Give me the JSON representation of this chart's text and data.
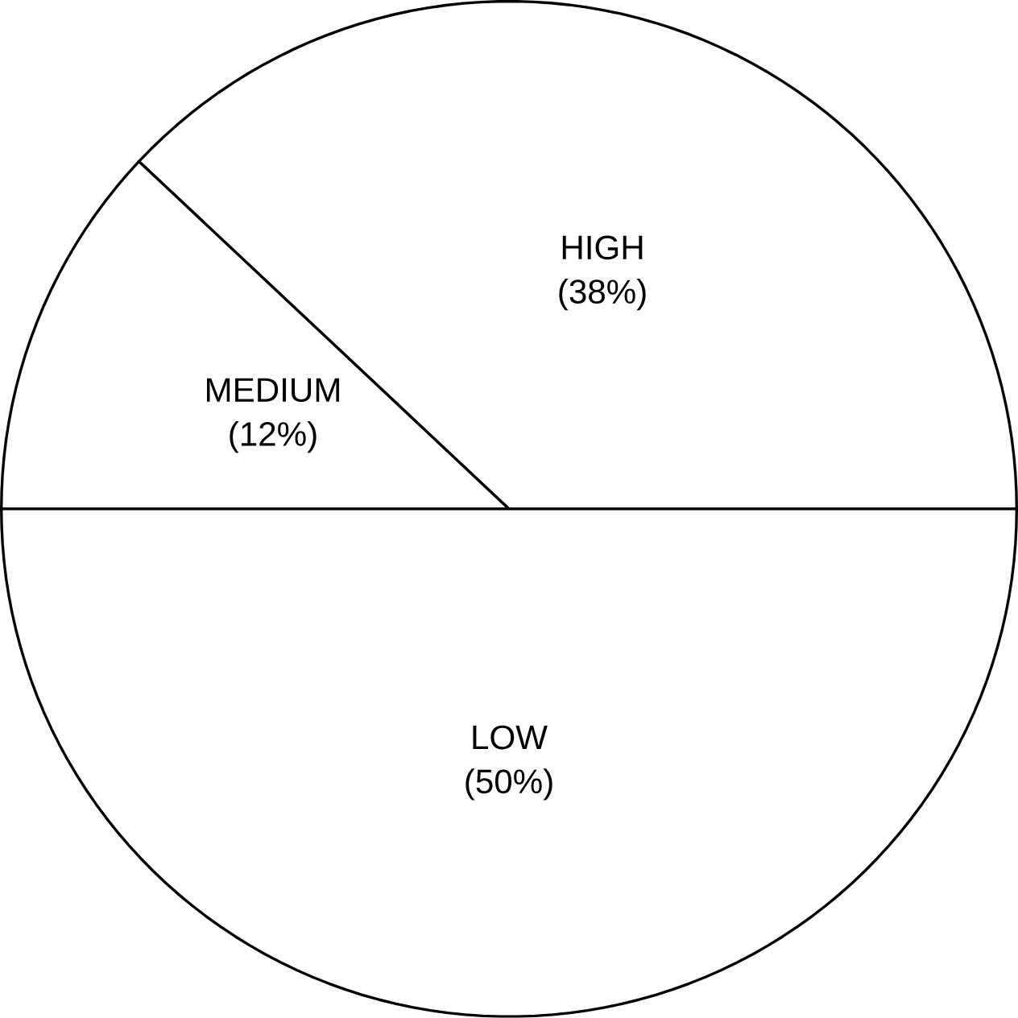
{
  "chart_data": {
    "type": "pie",
    "categories": [
      "HIGH",
      "MEDIUM",
      "LOW"
    ],
    "values": [
      38,
      12,
      50
    ],
    "value_labels": [
      "(38%)",
      "(12%)",
      "(50%)"
    ],
    "colors": [
      "#ffffff",
      "#ffffff",
      "#ffffff"
    ]
  }
}
